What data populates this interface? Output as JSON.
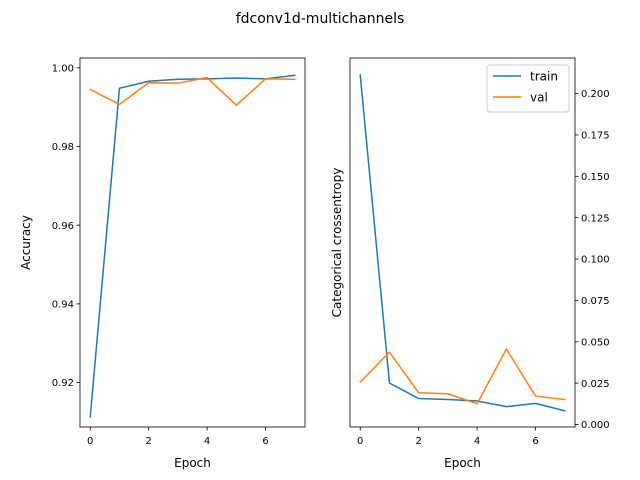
{
  "figure": {
    "title": "fdconv1d-multichannels"
  },
  "chart_data": [
    {
      "type": "line",
      "xlabel": "Epoch",
      "ylabel": "Accuracy",
      "xlim": [
        -0.35,
        7.35
      ],
      "ylim": [
        0.9087,
        1.0025
      ],
      "xticks": [
        0,
        2,
        4,
        6
      ],
      "xtick_labels": [
        "0",
        "2",
        "4",
        "6"
      ],
      "yticks": [
        0.92,
        0.94,
        0.96,
        0.98,
        1.0
      ],
      "ytick_labels": [
        "0.92",
        "0.94",
        "0.96",
        "0.98",
        "1.00"
      ],
      "y_axis_side": "left",
      "grid": false,
      "x": [
        0,
        1,
        2,
        3,
        4,
        5,
        6,
        7
      ],
      "series": [
        {
          "key": "train",
          "color": "#1f77b4",
          "values": [
            0.9113,
            0.9948,
            0.9966,
            0.9971,
            0.9972,
            0.9974,
            0.9972,
            0.9981
          ]
        },
        {
          "key": "val",
          "color": "#ff7f0e",
          "values": [
            0.9945,
            0.9907,
            0.9962,
            0.9961,
            0.9975,
            0.9905,
            0.9972,
            0.9971
          ]
        }
      ]
    },
    {
      "type": "line",
      "xlabel": "Epoch",
      "ylabel": "Categorical crossentropy",
      "xlim": [
        -0.35,
        7.35
      ],
      "ylim": [
        -0.0015,
        0.2215
      ],
      "xticks": [
        0,
        2,
        4,
        6
      ],
      "xtick_labels": [
        "0",
        "2",
        "4",
        "6"
      ],
      "yticks": [
        0.0,
        0.025,
        0.05,
        0.075,
        0.1,
        0.125,
        0.15,
        0.175,
        0.2
      ],
      "ytick_labels": [
        "0.000",
        "0.025",
        "0.050",
        "0.075",
        "0.100",
        "0.125",
        "0.150",
        "0.175",
        "0.200"
      ],
      "y_axis_side": "right",
      "grid": false,
      "legend": {
        "placement": "top-right",
        "entries": [
          "train",
          "val"
        ]
      },
      "x": [
        0,
        1,
        2,
        3,
        4,
        5,
        6,
        7
      ],
      "series": [
        {
          "name": "train",
          "color": "#1f77b4",
          "values": [
            0.2112,
            0.0251,
            0.0157,
            0.0151,
            0.0142,
            0.0108,
            0.0128,
            0.0083
          ]
        },
        {
          "name": "val",
          "color": "#ff7f0e",
          "values": [
            0.0257,
            0.0437,
            0.0192,
            0.0186,
            0.0125,
            0.0456,
            0.0172,
            0.0151
          ]
        }
      ]
    }
  ]
}
